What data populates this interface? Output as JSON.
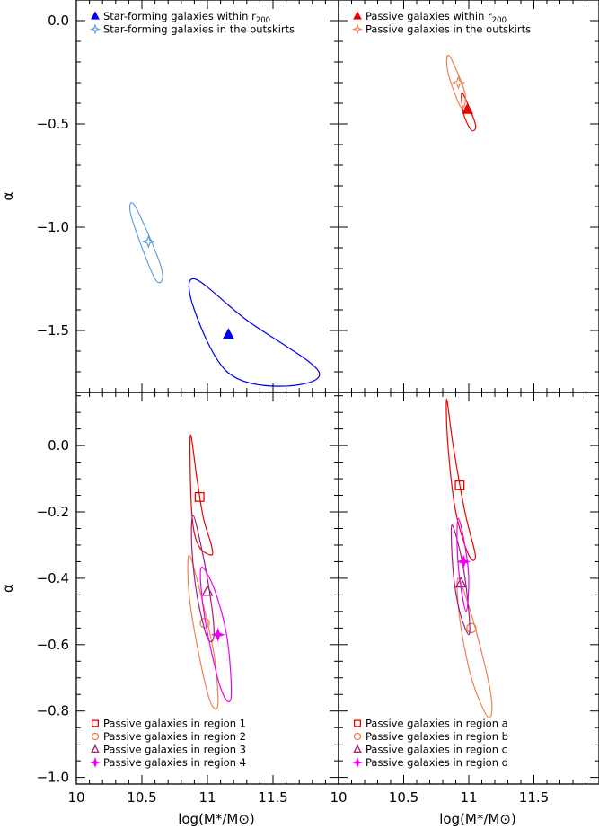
{
  "chart_data": [
    {
      "type": "scatter",
      "panel": "top-left",
      "title": "",
      "xlabel": "",
      "ylabel": "α",
      "xlim": [
        10,
        12
      ],
      "ylim": [
        -1.8,
        0.1
      ],
      "x_ticks": [],
      "y_ticks": [
        "0.0",
        "-0.5",
        "-1.0",
        "-1.5"
      ],
      "y_tick_values": [
        0.0,
        -0.5,
        -1.0,
        -1.5
      ],
      "legend_position": "top-left",
      "series": [
        {
          "name": "Star-forming galaxies within r",
          "name_sub": "200",
          "color": "#0000ee",
          "marker": "filled-triangle",
          "x": 11.16,
          "y": -1.52,
          "contour": [
            [
              10.9,
              -1.25
            ],
            [
              11.3,
              -1.45
            ],
            [
              11.85,
              -1.7
            ],
            [
              11.55,
              -1.77
            ],
            [
              11.15,
              -1.7
            ],
            [
              10.9,
              -1.4
            ],
            [
              10.9,
              -1.25
            ]
          ]
        },
        {
          "name": "Star-forming galaxies in the outskirts",
          "color": "#5f9ed6",
          "marker": "open-star",
          "x": 10.55,
          "y": -1.07,
          "contour": [
            [
              10.45,
              -0.9
            ],
            [
              10.65,
              -1.2
            ],
            [
              10.6,
              -1.25
            ],
            [
              10.42,
              -0.95
            ],
            [
              10.45,
              -0.9
            ]
          ]
        }
      ]
    },
    {
      "type": "scatter",
      "panel": "top-right",
      "title": "",
      "xlabel": "",
      "ylabel": "",
      "xlim": [
        10,
        12
      ],
      "ylim": [
        -1.8,
        0.1
      ],
      "legend_position": "top-left",
      "series": [
        {
          "name": "Passive galaxies within r",
          "name_sub": "200",
          "color": "#ee0000",
          "marker": "filled-triangle",
          "x": 10.99,
          "y": -0.43,
          "contour": [
            [
              10.95,
              -0.35
            ],
            [
              11.05,
              -0.5
            ],
            [
              11.02,
              -0.53
            ],
            [
              10.96,
              -0.45
            ],
            [
              10.95,
              -0.35
            ]
          ]
        },
        {
          "name": "Passive galaxies in the outskirts",
          "color": "#f08050",
          "marker": "open-star",
          "x": 10.92,
          "y": -0.3,
          "contour": [
            [
              10.85,
              -0.17
            ],
            [
              10.97,
              -0.35
            ],
            [
              10.94,
              -0.42
            ],
            [
              10.84,
              -0.25
            ],
            [
              10.85,
              -0.17
            ]
          ]
        }
      ]
    },
    {
      "type": "scatter",
      "panel": "bottom-left",
      "title": "",
      "xlabel": "log(M*/M⊙)",
      "ylabel": "α",
      "xlim": [
        10,
        12
      ],
      "ylim": [
        -1.02,
        0.16
      ],
      "x_ticks": [
        "10",
        "10.5",
        "11",
        "11.5"
      ],
      "x_tick_values": [
        10,
        10.5,
        11,
        11.5
      ],
      "y_ticks": [
        "0.0",
        "-0.2",
        "-0.4",
        "-0.6",
        "-0.8",
        "-1.0"
      ],
      "y_tick_values": [
        0.0,
        -0.2,
        -0.4,
        -0.6,
        -0.8,
        -1.0
      ],
      "legend_position": "bottom-left",
      "series": [
        {
          "name": "Passive galaxies in region 1",
          "color": "#ee0000",
          "marker": "open-square",
          "x": 10.94,
          "y": -0.155,
          "contour": [
            [
              10.87,
              0.03
            ],
            [
              10.92,
              -0.1
            ],
            [
              10.97,
              -0.22
            ],
            [
              11.03,
              -0.3
            ],
            [
              11.03,
              -0.33
            ],
            [
              10.93,
              -0.3
            ],
            [
              10.88,
              -0.2
            ],
            [
              10.87,
              0.03
            ]
          ]
        },
        {
          "name": "Passive galaxies in region 2",
          "color": "#f08050",
          "marker": "open-circle",
          "x": 10.98,
          "y": -0.535,
          "contour": [
            [
              10.86,
              -0.33
            ],
            [
              10.95,
              -0.45
            ],
            [
              11.05,
              -0.63
            ],
            [
              11.08,
              -0.78
            ],
            [
              11.02,
              -0.77
            ],
            [
              10.93,
              -0.62
            ],
            [
              10.86,
              -0.45
            ],
            [
              10.86,
              -0.33
            ]
          ]
        },
        {
          "name": "Passive galaxies in region 3",
          "color": "#a0207a",
          "marker": "open-triangle",
          "x": 11.0,
          "y": -0.44,
          "contour": [
            [
              10.89,
              -0.21
            ],
            [
              10.95,
              -0.3
            ],
            [
              11.02,
              -0.45
            ],
            [
              11.05,
              -0.57
            ],
            [
              11.0,
              -0.58
            ],
            [
              10.92,
              -0.45
            ],
            [
              10.88,
              -0.3
            ],
            [
              10.89,
              -0.21
            ]
          ]
        },
        {
          "name": "Passive galaxies in region 4",
          "color": "#ee00ee",
          "marker": "filled-star",
          "x": 11.08,
          "y": -0.57,
          "contour": [
            [
              10.95,
              -0.37
            ],
            [
              11.05,
              -0.43
            ],
            [
              11.15,
              -0.58
            ],
            [
              11.18,
              -0.76
            ],
            [
              11.1,
              -0.73
            ],
            [
              10.98,
              -0.52
            ],
            [
              10.95,
              -0.37
            ]
          ]
        }
      ]
    },
    {
      "type": "scatter",
      "panel": "bottom-right",
      "title": "",
      "xlabel": "log(M*/M⊙)",
      "ylabel": "",
      "xlim": [
        10,
        12
      ],
      "ylim": [
        -1.02,
        0.16
      ],
      "x_ticks": [
        "10",
        "10.5",
        "11",
        "11.5"
      ],
      "x_tick_values": [
        10,
        10.5,
        11,
        11.5
      ],
      "legend_position": "bottom-left",
      "series": [
        {
          "name": "Passive galaxies in region a",
          "color": "#ee0000",
          "marker": "open-square",
          "x": 10.93,
          "y": -0.12,
          "contour": [
            [
              10.83,
              0.14
            ],
            [
              10.88,
              0.0
            ],
            [
              10.97,
              -0.2
            ],
            [
              11.05,
              -0.33
            ],
            [
              11.0,
              -0.33
            ],
            [
              10.9,
              -0.2
            ],
            [
              10.84,
              0.0
            ],
            [
              10.83,
              0.14
            ]
          ]
        },
        {
          "name": "Passive galaxies in region b",
          "color": "#f08050",
          "marker": "open-circle",
          "x": 11.02,
          "y": -0.55,
          "contour": [
            [
              10.92,
              -0.4
            ],
            [
              11.05,
              -0.55
            ],
            [
              11.17,
              -0.75
            ],
            [
              11.15,
              -0.82
            ],
            [
              11.02,
              -0.7
            ],
            [
              10.93,
              -0.52
            ],
            [
              10.92,
              -0.4
            ]
          ]
        },
        {
          "name": "Passive galaxies in region c",
          "color": "#a0207a",
          "marker": "open-triangle",
          "x": 10.94,
          "y": -0.415,
          "contour": [
            [
              10.87,
              -0.24
            ],
            [
              10.95,
              -0.35
            ],
            [
              11.0,
              -0.5
            ],
            [
              11.0,
              -0.57
            ],
            [
              10.93,
              -0.5
            ],
            [
              10.88,
              -0.38
            ],
            [
              10.87,
              -0.24
            ]
          ]
        },
        {
          "name": "Passive galaxies in region d",
          "color": "#ee00ee",
          "marker": "filled-star",
          "x": 10.96,
          "y": -0.35,
          "contour": [
            [
              10.92,
              -0.22
            ],
            [
              10.97,
              -0.3
            ],
            [
              11.0,
              -0.4
            ],
            [
              10.98,
              -0.5
            ],
            [
              10.93,
              -0.4
            ],
            [
              10.91,
              -0.3
            ],
            [
              10.92,
              -0.22
            ]
          ]
        }
      ]
    }
  ]
}
